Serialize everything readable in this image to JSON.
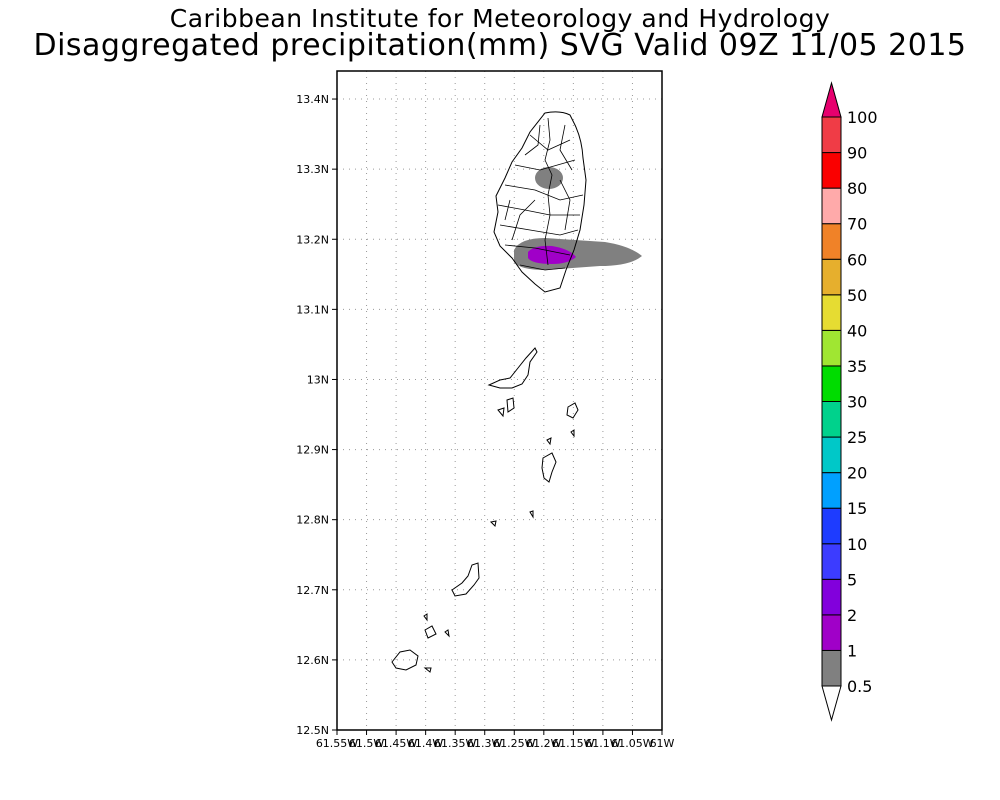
{
  "header": {
    "title": "Caribbean Institute for Meteorology and Hydrology",
    "subtitle": "Disaggregated precipitation(mm) SVG Valid 09Z 11/05 2015"
  },
  "map": {
    "lat_range": [
      12.5,
      13.44
    ],
    "lon_range": [
      -61.55,
      -61.0
    ],
    "lat_ticks": [
      {
        "v": 13.4,
        "label": "13.4N"
      },
      {
        "v": 13.3,
        "label": "13.3N"
      },
      {
        "v": 13.2,
        "label": "13.2N"
      },
      {
        "v": 13.1,
        "label": "13.1N"
      },
      {
        "v": 13.0,
        "label": "13N"
      },
      {
        "v": 12.9,
        "label": "12.9N"
      },
      {
        "v": 12.8,
        "label": "12.8N"
      },
      {
        "v": 12.7,
        "label": "12.7N"
      },
      {
        "v": 12.6,
        "label": "12.6N"
      },
      {
        "v": 12.5,
        "label": "12.5N"
      }
    ],
    "lon_ticks": [
      {
        "v": -61.55,
        "label": "61.55W"
      },
      {
        "v": -61.5,
        "label": "61.5W"
      },
      {
        "v": -61.45,
        "label": "61.45W"
      },
      {
        "v": -61.4,
        "label": "61.4W"
      },
      {
        "v": -61.35,
        "label": "61.35W"
      },
      {
        "v": -61.3,
        "label": "61.3W"
      },
      {
        "v": -61.25,
        "label": "61.25W"
      },
      {
        "v": -61.2,
        "label": "61.2W"
      },
      {
        "v": -61.15,
        "label": "61.15W"
      },
      {
        "v": -61.1,
        "label": "61.1W"
      },
      {
        "v": -61.05,
        "label": "61.05W"
      },
      {
        "v": -61.0,
        "label": "61W"
      }
    ],
    "grid": true
  },
  "colorbar": {
    "levels": [
      "0.5",
      "1",
      "2",
      "5",
      "10",
      "15",
      "20",
      "25",
      "30",
      "35",
      "40",
      "50",
      "60",
      "70",
      "80",
      "90",
      "100"
    ],
    "colors": [
      "#808080",
      "#a000c8",
      "#8200dc",
      "#3c3cff",
      "#1e3cff",
      "#00a0ff",
      "#00c8c8",
      "#00d28c",
      "#00dc00",
      "#a0e632",
      "#e6dc32",
      "#e6af2d",
      "#f08228",
      "#ffaaaa",
      "#fa0000",
      "#f03c46",
      "#e6006e"
    ]
  }
}
